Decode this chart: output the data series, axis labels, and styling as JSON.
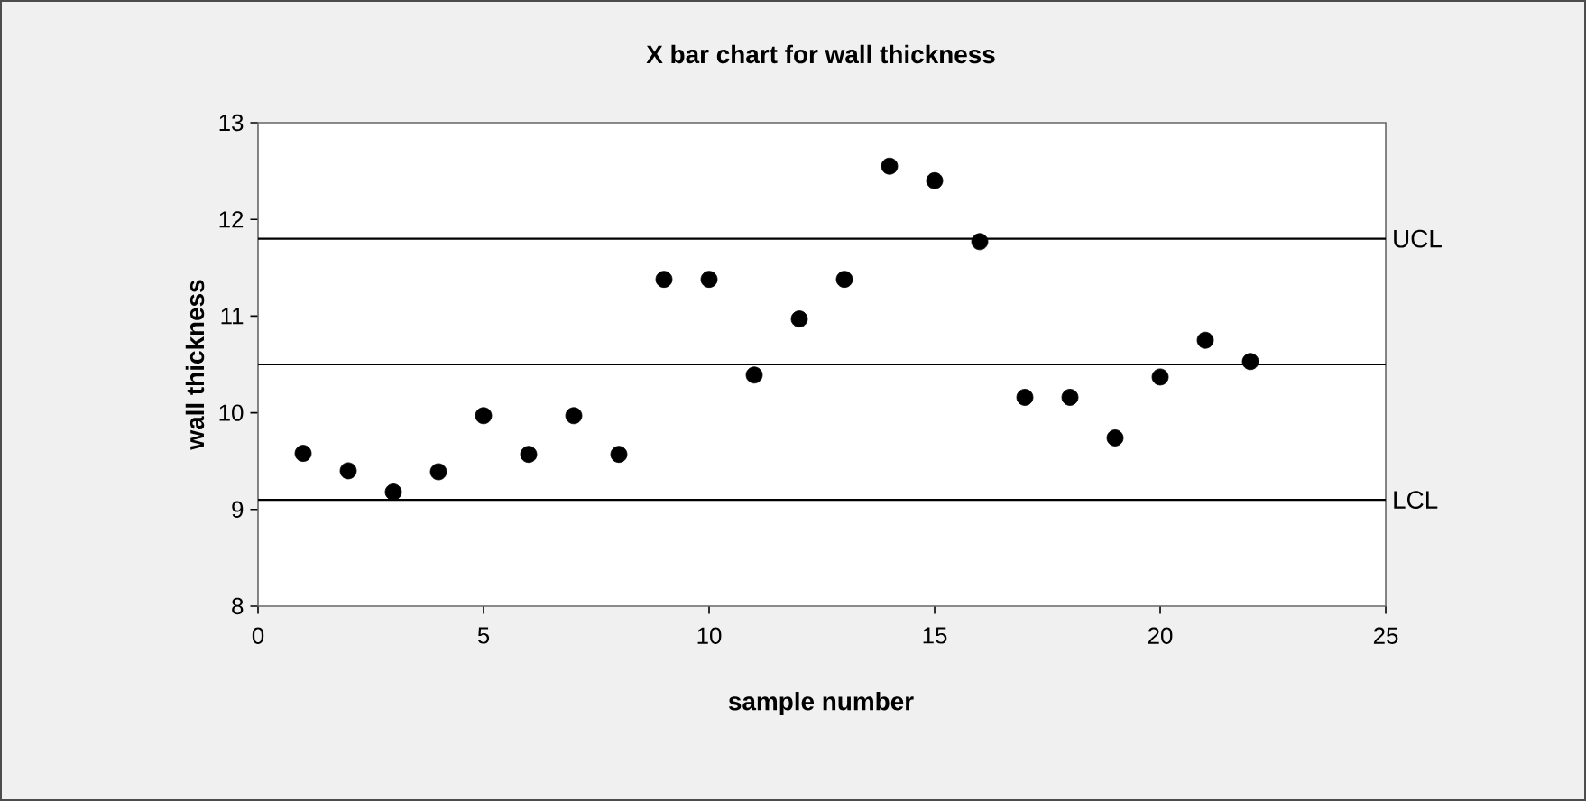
{
  "chart_data": {
    "type": "scatter",
    "title": "X bar chart for  wall thickness",
    "xlabel": "sample number",
    "ylabel": "wall thickness",
    "x": [
      1,
      2,
      3,
      4,
      5,
      6,
      7,
      8,
      9,
      10,
      11,
      12,
      13,
      14,
      15,
      16,
      17,
      18,
      19,
      20,
      21,
      22
    ],
    "values": [
      9.58,
      9.4,
      9.18,
      9.39,
      9.97,
      9.57,
      9.97,
      9.57,
      11.38,
      11.38,
      10.39,
      10.97,
      11.38,
      12.55,
      12.4,
      11.77,
      10.16,
      10.16,
      9.74,
      10.37,
      10.75,
      10.53
    ],
    "color": "#000000",
    "marker": "circle",
    "grid": false,
    "xlim": [
      0,
      25
    ],
    "xticks": [
      0,
      5,
      10,
      15,
      20,
      25
    ],
    "ylim": [
      8,
      13
    ],
    "yticks": [
      8,
      9,
      10,
      11,
      12,
      13
    ],
    "ref_lines": [
      {
        "axis": "y",
        "value": 11.8,
        "label": "UCL",
        "color": "#000000"
      },
      {
        "axis": "y",
        "value": 10.5,
        "color": "#000000"
      },
      {
        "axis": "y",
        "value": 9.1,
        "label": "LCL",
        "color": "#000000"
      }
    ]
  }
}
